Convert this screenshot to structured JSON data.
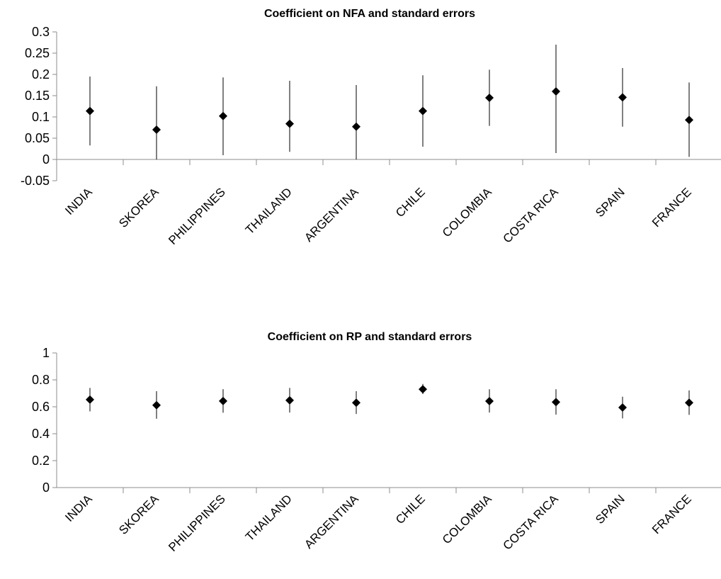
{
  "chart_data": [
    {
      "type": "scatter",
      "title": "Coefficient on NFA and standard errors",
      "xlabel": "",
      "ylabel": "",
      "ylim": [
        -0.05,
        0.3
      ],
      "yticks": [
        "0.3",
        "0.25",
        "0.2",
        "0.15",
        "0.1",
        "0.05",
        "0",
        "-0.05"
      ],
      "ytick_values": [
        0.3,
        0.25,
        0.2,
        0.15,
        0.1,
        0.05,
        0,
        -0.05
      ],
      "categories": [
        "INDIA",
        "SKOREA",
        "PHILIPPINES",
        "THAILAND",
        "ARGENTINA",
        "CHILE",
        "COLOMBIA",
        "COSTA RICA",
        "SPAIN",
        "FRANCE"
      ],
      "values": [
        0.114,
        0.07,
        0.102,
        0.084,
        0.077,
        0.114,
        0.145,
        0.16,
        0.146,
        0.093
      ],
      "error_low": [
        0.033,
        0.0,
        0.01,
        0.018,
        0.0,
        0.03,
        0.079,
        0.015,
        0.077,
        0.006
      ],
      "error_high": [
        0.195,
        0.172,
        0.193,
        0.185,
        0.175,
        0.198,
        0.211,
        0.27,
        0.215,
        0.181
      ],
      "grid": false,
      "legend": "none",
      "marker_color": "#000000"
    },
    {
      "type": "scatter",
      "title": "Coefficient on RP and standard errors",
      "xlabel": "",
      "ylabel": "",
      "ylim": [
        0,
        1
      ],
      "yticks": [
        "1",
        "0.8",
        "0.6",
        "0.4",
        "0.2",
        "0"
      ],
      "ytick_values": [
        1,
        0.8,
        0.6,
        0.4,
        0.2,
        0
      ],
      "categories": [
        "INDIA",
        "SKOREA",
        "PHILIPPINES",
        "THAILAND",
        "ARGENTINA",
        "CHILE",
        "COLOMBIA",
        "COSTA RICA",
        "SPAIN",
        "FRANCE"
      ],
      "values": [
        0.653,
        0.612,
        0.643,
        0.648,
        0.63,
        0.73,
        0.642,
        0.635,
        0.595,
        0.63
      ],
      "error_low": [
        0.566,
        0.511,
        0.556,
        0.557,
        0.547,
        0.695,
        0.557,
        0.542,
        0.514,
        0.54
      ],
      "error_high": [
        0.74,
        0.716,
        0.731,
        0.74,
        0.716,
        0.77,
        0.73,
        0.73,
        0.675,
        0.722
      ],
      "grid": false,
      "legend": "none",
      "marker_color": "#000000"
    }
  ]
}
